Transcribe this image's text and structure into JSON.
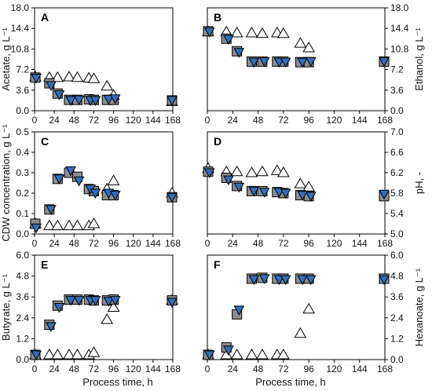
{
  "colors": {
    "blue": "#2e6fbe",
    "gray": "#8c8c8c",
    "open": "#ffffff",
    "outline": "#000000"
  },
  "figure": {
    "xlabel": "Process time, h",
    "x_ticks": [
      0,
      24,
      48,
      72,
      96,
      120,
      144,
      168
    ]
  },
  "chart_data": [
    {
      "type": "scatter",
      "letter": "A",
      "ylabel": "Acetate, g L⁻¹",
      "ylabel_side": "left",
      "xlim": [
        0,
        168
      ],
      "ylim": [
        0,
        18
      ],
      "yticks": [
        "0.0",
        "3.6",
        "7.2",
        "10.8",
        "14.4",
        "18.0"
      ],
      "series": [
        {
          "marker": "triangle-up-open",
          "x": [
            0,
            18,
            28,
            42,
            52,
            66,
            72,
            88,
            96,
            168
          ],
          "y": [
            5.9,
            5.8,
            5.8,
            5.9,
            5.8,
            5.7,
            5.6,
            4.3,
            2.7,
            1.6
          ]
        },
        {
          "marker": "square-gray",
          "x": [
            0,
            18,
            28,
            42,
            52,
            66,
            72,
            88,
            96,
            168
          ],
          "y": [
            5.8,
            4.8,
            3.0,
            1.9,
            1.9,
            2.0,
            1.9,
            1.9,
            1.9,
            1.8
          ]
        },
        {
          "marker": "triangle-down-blue",
          "x": [
            2,
            20,
            30,
            44,
            54,
            68,
            74,
            90,
            98,
            168
          ],
          "y": [
            5.7,
            4.4,
            2.8,
            1.8,
            1.9,
            1.8,
            1.8,
            2.0,
            2.1,
            1.8
          ]
        }
      ]
    },
    {
      "type": "scatter",
      "letter": "B",
      "ylabel": "Ethanol, g L⁻¹",
      "ylabel_side": "right",
      "xlim": [
        0,
        168
      ],
      "ylim": [
        0,
        18
      ],
      "yticks": [
        "0.0",
        "3.6",
        "7.2",
        "10.8",
        "14.4",
        "18.0"
      ],
      "series": [
        {
          "marker": "triangle-up-open",
          "x": [
            0,
            18,
            28,
            42,
            52,
            66,
            72,
            88,
            96
          ],
          "y": [
            13.8,
            13.8,
            13.6,
            13.6,
            13.5,
            13.6,
            13.5,
            11.8,
            11.0
          ]
        },
        {
          "marker": "square-gray",
          "x": [
            0,
            18,
            28,
            42,
            52,
            66,
            72,
            88,
            96,
            168
          ],
          "y": [
            13.9,
            12.6,
            10.4,
            8.6,
            8.6,
            8.6,
            8.6,
            8.5,
            8.5,
            8.6
          ]
        },
        {
          "marker": "triangle-down-blue",
          "x": [
            2,
            20,
            30,
            44,
            54,
            68,
            74,
            90,
            98,
            168
          ],
          "y": [
            13.8,
            12.5,
            10.2,
            8.5,
            8.6,
            8.5,
            8.5,
            8.5,
            8.6,
            8.6
          ]
        }
      ]
    },
    {
      "type": "scatter",
      "letter": "C",
      "ylabel": "CDW concentration, g L⁻¹",
      "ylabel_side": "left",
      "xlim": [
        0,
        168
      ],
      "ylim": [
        0,
        0.5
      ],
      "yticks": [
        "0.0",
        "0.1",
        "0.2",
        "0.3",
        "0.4",
        "0.5"
      ],
      "series": [
        {
          "marker": "triangle-up-open",
          "x": [
            0,
            18,
            28,
            42,
            52,
            66,
            72,
            88,
            96,
            168
          ],
          "y": [
            0.05,
            0.04,
            0.04,
            0.04,
            0.04,
            0.04,
            0.05,
            0.22,
            0.26,
            0.2
          ]
        },
        {
          "marker": "square-gray",
          "x": [
            0,
            18,
            28,
            42,
            52,
            66,
            72,
            88,
            96,
            168
          ],
          "y": [
            0.05,
            0.12,
            0.27,
            0.3,
            0.28,
            0.22,
            0.21,
            0.19,
            0.19,
            0.18
          ]
        },
        {
          "marker": "triangle-down-blue",
          "x": [
            2,
            20,
            30,
            44,
            54,
            68,
            74,
            90,
            98,
            168
          ],
          "y": [
            0.03,
            0.12,
            0.27,
            0.31,
            0.26,
            0.22,
            0.2,
            0.2,
            0.19,
            0.18
          ]
        }
      ]
    },
    {
      "type": "scatter",
      "letter": "D",
      "ylabel": "pH, -",
      "ylabel_side": "right",
      "xlim": [
        0,
        168
      ],
      "ylim": [
        5.0,
        7.0
      ],
      "yticks": [
        "5.0",
        "5.4",
        "5.8",
        "6.2",
        "6.6",
        "7.0"
      ],
      "series": [
        {
          "marker": "triangle-up-open",
          "x": [
            0,
            18,
            28,
            42,
            52,
            66,
            72,
            88,
            96
          ],
          "y": [
            6.28,
            6.22,
            6.22,
            6.2,
            6.22,
            6.24,
            6.2,
            5.98,
            5.92
          ]
        },
        {
          "marker": "square-gray",
          "x": [
            0,
            18,
            28,
            42,
            52,
            66,
            72,
            88,
            96,
            168
          ],
          "y": [
            6.22,
            6.1,
            5.94,
            5.84,
            5.84,
            5.82,
            5.8,
            5.76,
            5.74,
            5.74
          ]
        },
        {
          "marker": "triangle-down-blue",
          "x": [
            2,
            20,
            30,
            44,
            54,
            68,
            74,
            90,
            98,
            168
          ],
          "y": [
            6.2,
            6.06,
            5.92,
            5.84,
            5.82,
            5.82,
            5.8,
            5.76,
            5.74,
            5.78
          ]
        }
      ]
    },
    {
      "type": "scatter",
      "letter": "E",
      "ylabel": "Butyrate, g L⁻¹",
      "ylabel_side": "left",
      "xlim": [
        0,
        168
      ],
      "ylim": [
        0,
        6.0
      ],
      "yticks": [
        "0.0",
        "1.2",
        "2.4",
        "3.6",
        "4.8",
        "6.0"
      ],
      "series": [
        {
          "marker": "triangle-up-open",
          "x": [
            0,
            18,
            28,
            42,
            52,
            66,
            72,
            88,
            96,
            168
          ],
          "y": [
            0.05,
            0.05,
            0.05,
            0.05,
            0.05,
            0.05,
            0.4,
            2.3,
            3.0,
            3.4
          ]
        },
        {
          "marker": "square-gray",
          "x": [
            0,
            18,
            28,
            42,
            52,
            66,
            72,
            88,
            96,
            168
          ],
          "y": [
            0.05,
            2.0,
            3.1,
            3.45,
            3.45,
            3.45,
            3.4,
            3.4,
            3.45,
            3.4
          ]
        },
        {
          "marker": "triangle-down-blue",
          "x": [
            2,
            20,
            30,
            44,
            54,
            68,
            74,
            90,
            98,
            168
          ],
          "y": [
            0.05,
            1.9,
            3.0,
            3.4,
            3.4,
            3.4,
            3.4,
            3.35,
            3.4,
            3.3
          ]
        }
      ]
    },
    {
      "type": "scatter",
      "letter": "F",
      "ylabel": "Hexanoate, g L⁻¹",
      "ylabel_side": "right",
      "xlim": [
        0,
        168
      ],
      "ylim": [
        0,
        6.0
      ],
      "yticks": [
        "0.0",
        "1.2",
        "2.4",
        "3.6",
        "4.8",
        "6.0"
      ],
      "series": [
        {
          "marker": "triangle-up-open",
          "x": [
            0,
            18,
            28,
            42,
            52,
            66,
            72,
            88,
            96
          ],
          "y": [
            0.05,
            0.05,
            0.05,
            0.05,
            0.05,
            0.05,
            0.05,
            1.5,
            2.9
          ]
        },
        {
          "marker": "square-gray",
          "x": [
            0,
            18,
            28,
            42,
            52,
            66,
            72,
            88,
            96,
            168
          ],
          "y": [
            0.05,
            0.7,
            2.6,
            4.65,
            4.7,
            4.65,
            4.65,
            4.65,
            4.65,
            4.65
          ]
        },
        {
          "marker": "triangle-down-blue",
          "x": [
            2,
            20,
            30,
            44,
            54,
            68,
            74,
            90,
            98,
            168
          ],
          "y": [
            0.05,
            0.55,
            2.85,
            4.6,
            4.65,
            4.6,
            4.6,
            4.6,
            4.6,
            4.6
          ]
        }
      ]
    }
  ]
}
